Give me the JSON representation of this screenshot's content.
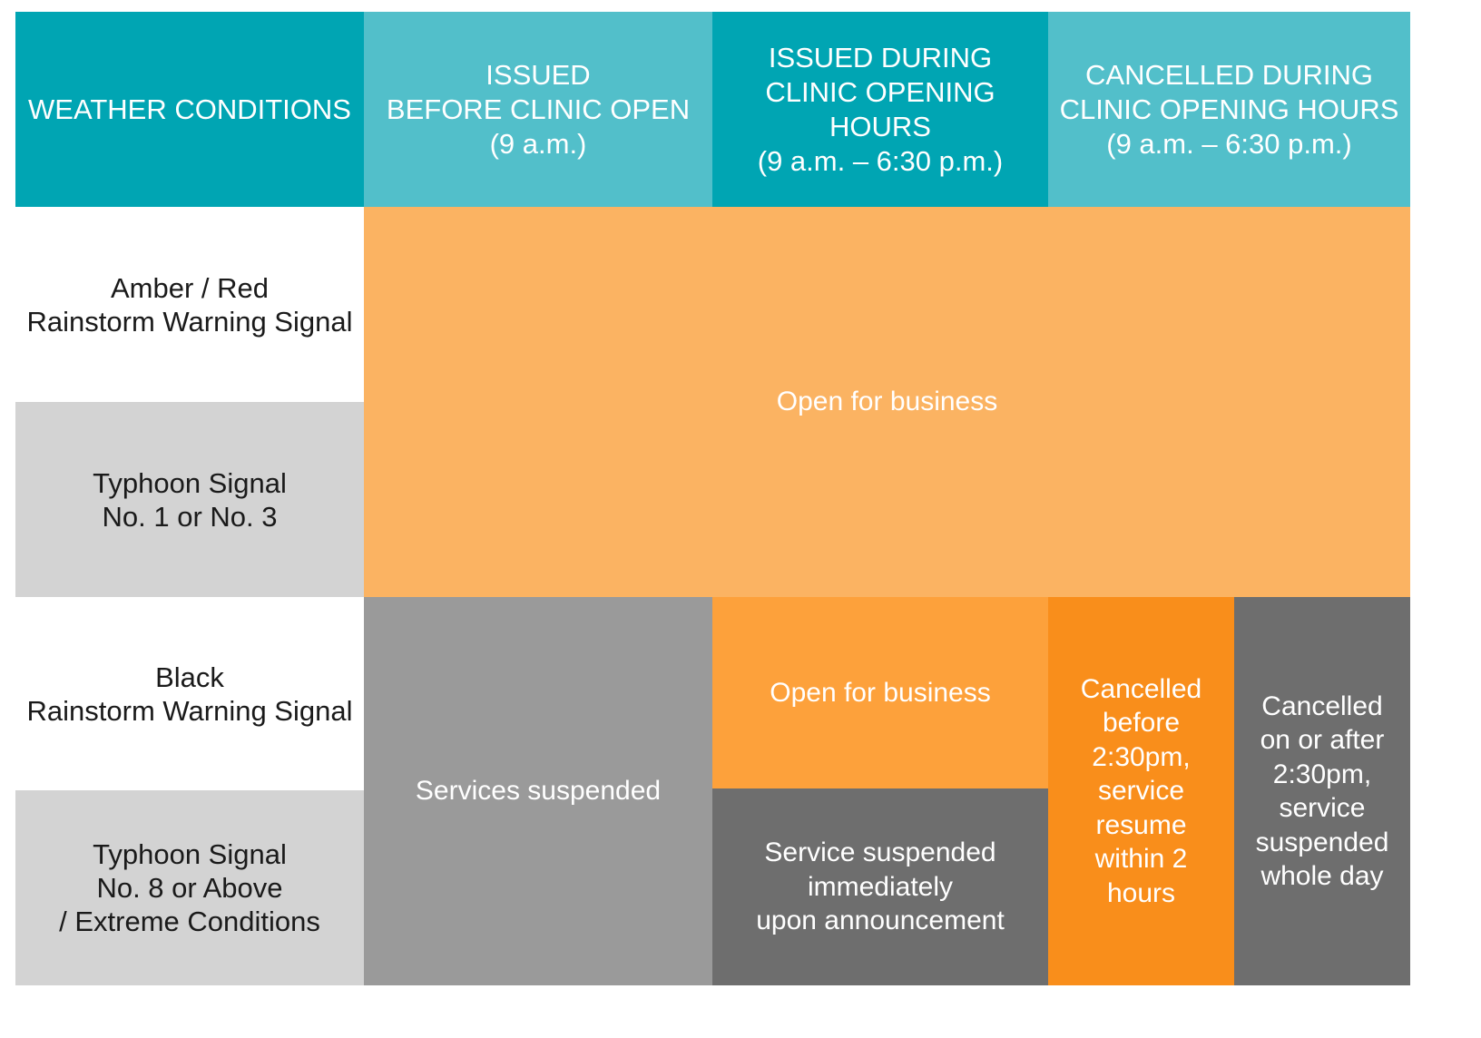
{
  "colors": {
    "header_dark": "#00a5b3",
    "header_light": "#52bfca",
    "row_white": "#ffffff",
    "row_grey": "#d3d3d3",
    "open_light_orange": "#fbb362",
    "open_mid_orange": "#fda13b",
    "cancel_orange": "#f98e1b",
    "suspended_grey": "#9a9a9a",
    "dark_grey": "#6e6e6e"
  },
  "headers": {
    "weather": "WEATHER CONDITIONS",
    "before_open": "ISSUED\nBEFORE CLINIC OPEN\n(9 a.m.)",
    "during_hours": "ISSUED DURING\nCLINIC OPENING HOURS\n(9 a.m. – 6:30 p.m.)",
    "cancelled_during": "CANCELLED DURING\nCLINIC OPENING HOURS\n(9 a.m. – 6:30 p.m.)"
  },
  "conditions": {
    "amber_red": "Amber / Red\nRainstorm Warning Signal",
    "typhoon_1_3": "Typhoon Signal\nNo. 1 or No. 3",
    "black": "Black\nRainstorm Warning Signal",
    "typhoon_8": "Typhoon Signal\nNo. 8 or Above\n/ Extreme Conditions"
  },
  "outcomes": {
    "open_main": "Open for business",
    "services_suspended": "Services suspended",
    "open_black": "Open for business",
    "suspended_immediately": "Service suspended immediately\nupon announcement",
    "cancelled_before": "Cancelled\nbefore 2:30pm,\nservice resume\nwithin 2 hours",
    "cancelled_after": "Cancelled\non or after\n2:30pm,\nservice\nsuspended\nwhole day"
  }
}
